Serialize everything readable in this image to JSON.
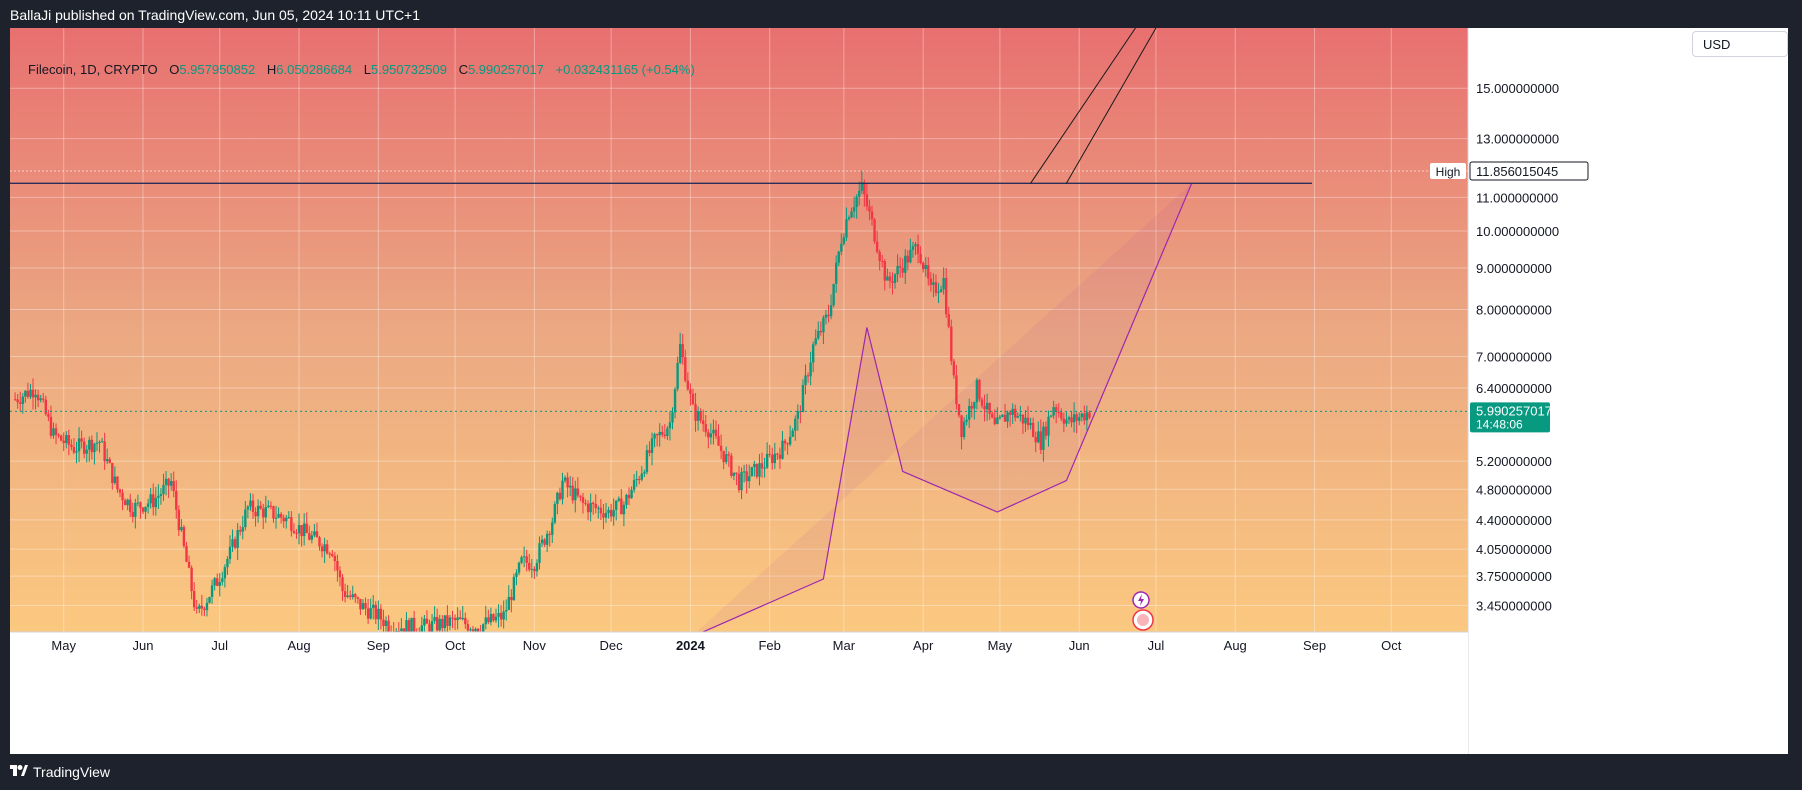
{
  "header": {
    "published": "BallaJi published on TradingView.com, Jun 05, 2024 10:11 UTC+1"
  },
  "legend": {
    "symbol": "Filecoin, 1D, CRYPTO",
    "o_label": "O",
    "o_value": "5.957950852",
    "h_label": "H",
    "h_value": "6.050286684",
    "l_label": "L",
    "l_value": "5.950732509",
    "c_label": "C",
    "c_value": "5.990257017",
    "change": "+0.032431165 (+0.54%)"
  },
  "currency": "USD",
  "footer": {
    "brand": "TradingView"
  },
  "colors": {
    "up": "#089981",
    "down": "#f23645",
    "pattern": "#9c27b0",
    "highline": "#2a2e5a",
    "price_badge": "#089981"
  },
  "chart_data": {
    "type": "candlestick",
    "title": "Filecoin, 1D, CRYPTO",
    "x_ticks": [
      "May",
      "Jun",
      "Jul",
      "Aug",
      "Sep",
      "Oct",
      "Nov",
      "Dec",
      "2024",
      "Feb",
      "Mar",
      "Apr",
      "May",
      "Jun",
      "Jul",
      "Aug",
      "Sep",
      "Oct"
    ],
    "y_ticks": [
      "15.000000000",
      "13.000000000",
      "11.000000000",
      "10.000000000",
      "9.000000000",
      "8.000000000",
      "7.000000000",
      "6.400000000",
      "5.200000000",
      "4.800000000",
      "4.400000000",
      "4.050000000",
      "3.750000000",
      "3.450000000"
    ],
    "y_scale": "log",
    "ylim": [
      3.2,
      17.8
    ],
    "xlim": [
      "2023-04-10",
      "2024-10-31"
    ],
    "high_label": "High",
    "high_value": "11.856015045",
    "high_line_price": 11.45,
    "current_price": "5.990257017",
    "countdown": "14:48:06",
    "close_series": [
      {
        "d": "2023-04-12",
        "v": 6.2
      },
      {
        "d": "2023-04-20",
        "v": 6.4
      },
      {
        "d": "2023-04-27",
        "v": 5.6
      },
      {
        "d": "2023-05-05",
        "v": 5.4
      },
      {
        "d": "2023-05-15",
        "v": 5.5
      },
      {
        "d": "2023-05-22",
        "v": 4.8
      },
      {
        "d": "2023-05-28",
        "v": 4.55
      },
      {
        "d": "2023-06-05",
        "v": 4.65
      },
      {
        "d": "2023-06-12",
        "v": 4.9
      },
      {
        "d": "2023-06-18",
        "v": 3.9
      },
      {
        "d": "2023-06-22",
        "v": 3.35
      },
      {
        "d": "2023-06-30",
        "v": 3.7
      },
      {
        "d": "2023-07-05",
        "v": 4.0
      },
      {
        "d": "2023-07-12",
        "v": 4.55
      },
      {
        "d": "2023-07-20",
        "v": 4.5
      },
      {
        "d": "2023-07-28",
        "v": 4.4
      },
      {
        "d": "2023-08-05",
        "v": 4.2
      },
      {
        "d": "2023-08-14",
        "v": 4.05
      },
      {
        "d": "2023-08-18",
        "v": 3.6
      },
      {
        "d": "2023-08-25",
        "v": 3.45
      },
      {
        "d": "2023-09-01",
        "v": 3.35
      },
      {
        "d": "2023-09-06",
        "v": 3.25
      },
      {
        "d": "2023-09-20",
        "v": 3.25
      },
      {
        "d": "2023-10-01",
        "v": 3.3
      },
      {
        "d": "2023-10-10",
        "v": 3.25
      },
      {
        "d": "2023-10-20",
        "v": 3.35
      },
      {
        "d": "2023-10-27",
        "v": 3.9
      },
      {
        "d": "2023-11-01",
        "v": 3.9
      },
      {
        "d": "2023-11-08",
        "v": 4.4
      },
      {
        "d": "2023-11-12",
        "v": 4.9
      },
      {
        "d": "2023-11-20",
        "v": 4.6
      },
      {
        "d": "2023-11-30",
        "v": 4.5
      },
      {
        "d": "2023-12-06",
        "v": 4.6
      },
      {
        "d": "2023-12-12",
        "v": 5.0
      },
      {
        "d": "2023-12-18",
        "v": 5.5
      },
      {
        "d": "2023-12-24",
        "v": 5.8
      },
      {
        "d": "2023-12-28",
        "v": 7.2
      },
      {
        "d": "2024-01-02",
        "v": 6.0
      },
      {
        "d": "2024-01-08",
        "v": 5.7
      },
      {
        "d": "2024-01-14",
        "v": 5.3
      },
      {
        "d": "2024-01-20",
        "v": 4.9
      },
      {
        "d": "2024-01-28",
        "v": 5.1
      },
      {
        "d": "2024-02-06",
        "v": 5.4
      },
      {
        "d": "2024-02-12",
        "v": 5.9
      },
      {
        "d": "2024-02-18",
        "v": 7.2
      },
      {
        "d": "2024-02-24",
        "v": 7.9
      },
      {
        "d": "2024-02-29",
        "v": 9.8
      },
      {
        "d": "2024-03-03",
        "v": 10.6
      },
      {
        "d": "2024-03-08",
        "v": 11.3
      },
      {
        "d": "2024-03-12",
        "v": 10.2
      },
      {
        "d": "2024-03-18",
        "v": 8.6
      },
      {
        "d": "2024-03-24",
        "v": 9.1
      },
      {
        "d": "2024-03-30",
        "v": 9.6
      },
      {
        "d": "2024-04-04",
        "v": 8.4
      },
      {
        "d": "2024-04-09",
        "v": 8.7
      },
      {
        "d": "2024-04-13",
        "v": 6.5
      },
      {
        "d": "2024-04-16",
        "v": 5.7
      },
      {
        "d": "2024-04-22",
        "v": 6.4
      },
      {
        "d": "2024-04-29",
        "v": 5.7
      },
      {
        "d": "2024-05-05",
        "v": 6.0
      },
      {
        "d": "2024-05-12",
        "v": 5.8
      },
      {
        "d": "2024-05-17",
        "v": 5.5
      },
      {
        "d": "2024-05-22",
        "v": 6.1
      },
      {
        "d": "2024-05-28",
        "v": 5.8
      },
      {
        "d": "2024-06-05",
        "v": 5.99
      }
    ],
    "pattern_points": [
      {
        "d": "2024-01-01",
        "v": 3.15
      },
      {
        "d": "2024-02-22",
        "v": 3.72
      },
      {
        "d": "2024-03-10",
        "v": 7.6
      },
      {
        "d": "2024-03-24",
        "v": 5.05
      },
      {
        "d": "2024-04-30",
        "v": 4.5
      },
      {
        "d": "2024-05-27",
        "v": 4.92
      },
      {
        "d": "2024-07-15",
        "v": 11.45
      }
    ],
    "channel_lines": [
      [
        {
          "d": "2024-05-13",
          "v": 11.45
        },
        {
          "d": "2024-06-23",
          "v": 17.8
        }
      ],
      [
        {
          "d": "2024-05-27",
          "v": 11.45
        },
        {
          "d": "2024-07-01",
          "v": 17.8
        }
      ]
    ]
  }
}
